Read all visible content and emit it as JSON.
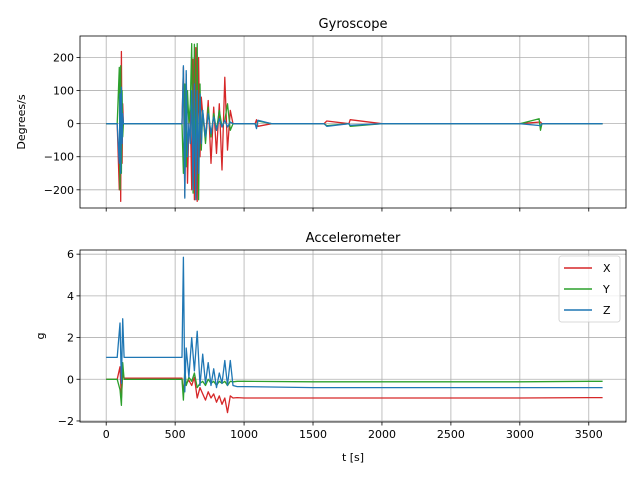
{
  "chart_data": [
    {
      "type": "line",
      "title": "Gyroscope",
      "xlabel": "",
      "ylabel": "Degrees/s",
      "xlim": [
        -190,
        3770
      ],
      "ylim": [
        -255,
        265
      ],
      "xticks": [
        0,
        500,
        1000,
        1500,
        2000,
        2500,
        3000,
        3500
      ],
      "yticks": [
        -200,
        -100,
        0,
        100,
        200
      ],
      "ytick_labels": [
        "−200",
        "−100",
        "0",
        "100",
        "200"
      ],
      "show_xtick_labels": false,
      "grid": true,
      "series": [
        {
          "name": "X",
          "color": "#d62728",
          "x": [
            0,
            80,
            95,
            100,
            105,
            110,
            115,
            120,
            125,
            130,
            200,
            400,
            550,
            560,
            570,
            580,
            590,
            600,
            610,
            620,
            630,
            640,
            650,
            660,
            670,
            680,
            690,
            700,
            720,
            740,
            760,
            780,
            800,
            820,
            840,
            860,
            880,
            900,
            920,
            1000,
            1080,
            1090,
            1100,
            1200,
            1500,
            1580,
            1600,
            1760,
            1770,
            2000,
            2500,
            3000,
            3150,
            3160,
            3500,
            3600
          ],
          "y": [
            0,
            0,
            -200,
            150,
            -235,
            218,
            -120,
            60,
            0,
            0,
            0,
            0,
            0,
            170,
            -220,
            150,
            -180,
            0,
            40,
            -200,
            195,
            -230,
            230,
            -235,
            200,
            -100,
            80,
            30,
            -50,
            70,
            -120,
            50,
            -90,
            60,
            -140,
            140,
            -80,
            40,
            0,
            0,
            0,
            12,
            -8,
            0,
            0,
            0,
            8,
            0,
            12,
            0,
            0,
            0,
            5,
            0,
            0,
            0
          ]
        },
        {
          "name": "Y",
          "color": "#2ca02c",
          "x": [
            0,
            80,
            95,
            100,
            105,
            110,
            115,
            120,
            125,
            130,
            200,
            400,
            550,
            560,
            570,
            580,
            590,
            600,
            610,
            620,
            630,
            640,
            650,
            660,
            670,
            680,
            690,
            700,
            720,
            740,
            760,
            780,
            800,
            820,
            840,
            860,
            880,
            900,
            920,
            1000,
            1080,
            1090,
            1100,
            1200,
            1500,
            1580,
            1600,
            1760,
            1770,
            2000,
            2500,
            3000,
            3140,
            3150,
            3160,
            3500,
            3600
          ],
          "y": [
            0,
            0,
            170,
            -200,
            175,
            -150,
            100,
            -40,
            0,
            0,
            0,
            0,
            0,
            -150,
            120,
            -130,
            100,
            0,
            60,
            242,
            -210,
            240,
            -200,
            242,
            -230,
            120,
            -80,
            40,
            -60,
            50,
            -40,
            30,
            -20,
            40,
            -10,
            10,
            60,
            -20,
            0,
            0,
            0,
            -10,
            8,
            0,
            0,
            0,
            -6,
            0,
            -8,
            0,
            0,
            0,
            15,
            -20,
            0,
            0,
            0
          ]
        },
        {
          "name": "Z",
          "color": "#1f77b4",
          "x": [
            0,
            80,
            95,
            100,
            105,
            110,
            115,
            120,
            125,
            130,
            200,
            400,
            550,
            560,
            570,
            580,
            590,
            600,
            610,
            620,
            630,
            640,
            650,
            660,
            670,
            680,
            690,
            700,
            720,
            740,
            760,
            780,
            800,
            820,
            840,
            860,
            880,
            900,
            920,
            1000,
            1080,
            1090,
            1100,
            1200,
            1500,
            1580,
            1600,
            1760,
            1770,
            2000,
            2500,
            3000,
            3150,
            3160,
            3500,
            3600
          ],
          "y": [
            0,
            0,
            -120,
            90,
            -150,
            110,
            -60,
            30,
            0,
            0,
            0,
            0,
            0,
            175,
            -225,
            160,
            -100,
            0,
            -60,
            100,
            -200,
            120,
            -230,
            100,
            -150,
            90,
            -60,
            40,
            -40,
            30,
            -30,
            20,
            -20,
            15,
            -10,
            10,
            -10,
            5,
            0,
            0,
            0,
            -15,
            10,
            0,
            0,
            0,
            -8,
            0,
            -5,
            0,
            0,
            0,
            -6,
            0,
            0,
            0
          ]
        }
      ]
    },
    {
      "type": "line",
      "title": "Accelerometer",
      "xlabel": "t [s]",
      "ylabel": "g",
      "xlim": [
        -190,
        3770
      ],
      "ylim": [
        -2.05,
        6.2
      ],
      "xticks": [
        0,
        500,
        1000,
        1500,
        2000,
        2500,
        3000,
        3500
      ],
      "xtick_labels": [
        "0",
        "500",
        "1000",
        "1500",
        "2000",
        "2500",
        "3000",
        "3500"
      ],
      "yticks": [
        -2,
        0,
        2,
        4,
        6
      ],
      "ytick_labels": [
        "−2",
        "0",
        "2",
        "4",
        "6"
      ],
      "show_xtick_labels": true,
      "grid": true,
      "legend": {
        "position": "upper-right",
        "entries": [
          "X",
          "Y",
          "Z"
        ]
      },
      "series": [
        {
          "name": "X",
          "color": "#d62728",
          "x": [
            0,
            80,
            100,
            110,
            120,
            130,
            200,
            400,
            550,
            560,
            570,
            580,
            600,
            620,
            640,
            660,
            680,
            700,
            720,
            740,
            760,
            780,
            800,
            820,
            840,
            860,
            880,
            900,
            920,
            950,
            1000,
            1500,
            2000,
            2500,
            3000,
            3500,
            3600
          ],
          "y": [
            0,
            0,
            0.6,
            -0.9,
            0.3,
            0.05,
            0.05,
            0.05,
            0.05,
            -0.7,
            0.2,
            -0.2,
            -0.05,
            -0.3,
            0.1,
            -0.9,
            -0.4,
            -0.7,
            -1.0,
            -0.6,
            -0.9,
            -0.7,
            -1.1,
            -0.8,
            -1.2,
            -0.9,
            -1.6,
            -0.8,
            -0.9,
            -0.88,
            -0.9,
            -0.9,
            -0.9,
            -0.9,
            -0.9,
            -0.88,
            -0.88
          ]
        },
        {
          "name": "Y",
          "color": "#2ca02c",
          "x": [
            0,
            80,
            100,
            110,
            120,
            130,
            200,
            400,
            550,
            560,
            570,
            580,
            600,
            620,
            640,
            660,
            680,
            700,
            720,
            740,
            760,
            780,
            800,
            820,
            840,
            860,
            880,
            900,
            920,
            950,
            1000,
            1500,
            2000,
            2500,
            3000,
            3500,
            3600
          ],
          "y": [
            0,
            0,
            -0.5,
            -1.25,
            0.8,
            0,
            0,
            0,
            0,
            -1.0,
            0.5,
            -0.3,
            0.1,
            -0.1,
            0.3,
            -0.4,
            -0.2,
            -0.1,
            -0.3,
            0,
            -0.2,
            -0.1,
            -0.3,
            -0.1,
            -0.2,
            -0.1,
            -0.3,
            -0.1,
            -0.12,
            -0.1,
            -0.1,
            -0.12,
            -0.12,
            -0.12,
            -0.12,
            -0.1,
            -0.1
          ]
        },
        {
          "name": "Z",
          "color": "#1f77b4",
          "x": [
            0,
            80,
            100,
            110,
            120,
            130,
            200,
            400,
            550,
            560,
            570,
            580,
            600,
            620,
            640,
            660,
            680,
            700,
            720,
            740,
            760,
            780,
            800,
            820,
            840,
            860,
            880,
            900,
            920,
            950,
            1000,
            1500,
            2000,
            2500,
            3000,
            3500,
            3600
          ],
          "y": [
            1.05,
            1.05,
            2.7,
            -0.2,
            2.9,
            1.05,
            1.05,
            1.05,
            1.05,
            5.85,
            -0.6,
            1.5,
            0.1,
            2.0,
            0.4,
            2.3,
            -0.3,
            1.2,
            -0.2,
            0.8,
            -0.3,
            0.5,
            -0.4,
            0.3,
            -0.2,
            0.9,
            -0.3,
            0.9,
            -0.3,
            -0.35,
            -0.35,
            -0.4,
            -0.4,
            -0.4,
            -0.4,
            -0.4,
            -0.4
          ]
        }
      ]
    }
  ]
}
